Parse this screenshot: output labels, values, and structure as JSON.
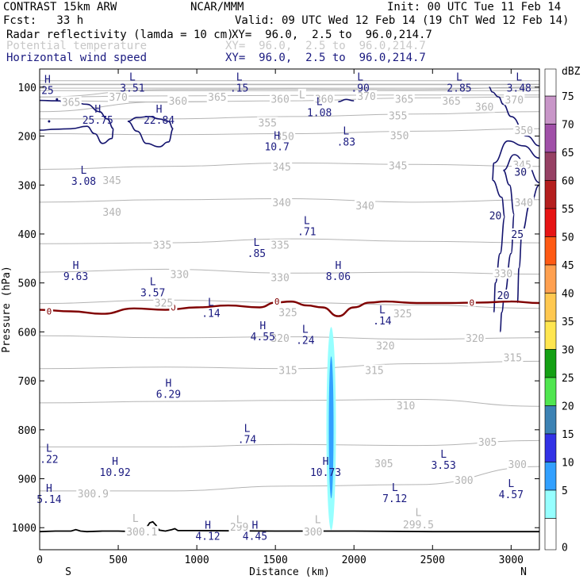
{
  "header": {
    "model": "CONTRAST 15km ARW",
    "center": "NCAR/MMM",
    "init": "Init: 00 UTC Tue 11 Feb 14",
    "fcst": "Fcst:   33 h",
    "valid": "Valid: 09 UTC Wed 12 Feb 14 (19 ChT Wed 12 Feb 14)",
    "fields": [
      {
        "name": "Radar reflectivity (lamda = 10 cm)",
        "xy": "XY=  96.0,  2.5 to  96.0,214.7",
        "color": "#000000"
      },
      {
        "name": "Potential temperature",
        "xy": "XY=  96.0,  2.5 to  96.0,214.7",
        "color": "#c8c8c8"
      },
      {
        "name": "Horizontal wind speed",
        "xy": "XY=  96.0,  2.5 to  96.0,214.7",
        "color": "#1a1a80"
      }
    ]
  },
  "chart_data": {
    "type": "cross-section",
    "xlabel": "Distance (km)",
    "ylabel": "Pressure (hPa)",
    "xlim": [
      0,
      3180
    ],
    "ylim": [
      1045,
      63
    ],
    "x_ticks": [
      0,
      500,
      1000,
      1500,
      2000,
      2500,
      3000
    ],
    "y_ticks": [
      100,
      200,
      300,
      400,
      500,
      600,
      700,
      800,
      900,
      1000
    ],
    "end_labels": {
      "left": "S",
      "right": "N"
    },
    "colorbar": {
      "unit": "dBZ",
      "levels": [
        "75",
        "70",
        "65",
        "60",
        "55",
        "50",
        "45",
        "40",
        "35",
        "30",
        "25",
        "20",
        "15",
        "10",
        "5",
        "0"
      ],
      "colors": [
        "#c896c8",
        "#a050a8",
        "#964064",
        "#b41e1e",
        "#e61414",
        "#ff5a14",
        "#ffa050",
        "#ffc850",
        "#ffe650",
        "#14a014",
        "#50e650",
        "#3c82b4",
        "#3232e6",
        "#32a0ff",
        "#96ffff",
        "#ffffff"
      ]
    },
    "theta_isentropes": [
      {
        "label": "370",
        "p": [
          120,
          105,
          104,
          105,
          100
        ]
      },
      {
        "label": "365",
        "p": [
          120,
          118,
          117,
          116,
          116
        ]
      },
      {
        "label": "360",
        "p": [
          150,
          130,
          128,
          122,
          120
        ]
      },
      {
        "label": "355",
        "p": [
          165,
          165,
          160,
          155,
          150
        ]
      },
      {
        "label": "350",
        "p": [
          195,
          197,
          195,
          190,
          185
        ]
      },
      {
        "label": "345",
        "p": [
          268,
          262,
          255,
          258,
          262
        ]
      },
      {
        "label": "340",
        "p": [
          335,
          330,
          328,
          335,
          330
        ]
      },
      {
        "label": "335",
        "p": [
          420,
          418,
          410,
          415,
          418
        ]
      },
      {
        "label": "330",
        "p": [
          478,
          472,
          480,
          478,
          482
        ]
      },
      {
        "label": "325",
        "p": [
          542,
          535,
          540,
          545,
          552
        ]
      },
      {
        "label": "320",
        "p": [
          608,
          612,
          610,
          615,
          612
        ]
      },
      {
        "label": "315",
        "p": [
          675,
          672,
          675,
          665,
          660
        ]
      },
      {
        "label": "310",
        "p": [
          745,
          742,
          740,
          738,
          752
        ]
      },
      {
        "label": "305",
        "p": [
          835,
          835,
          830,
          832,
          822
        ]
      },
      {
        "label": "300",
        "p": [
          925,
          925,
          915,
          912,
          875
        ]
      }
    ],
    "theta_labels": [
      {
        "x": 200,
        "p": 130,
        "text": "365"
      },
      {
        "x": 500,
        "p": 120,
        "text": "370"
      },
      {
        "x": 880,
        "p": 128,
        "text": "360"
      },
      {
        "x": 1130,
        "p": 120,
        "text": "365"
      },
      {
        "x": 1530,
        "p": 124,
        "text": "360"
      },
      {
        "x": 1810,
        "p": 124,
        "text": "360"
      },
      {
        "x": 2080,
        "p": 118,
        "text": "370"
      },
      {
        "x": 2320,
        "p": 124,
        "text": "365"
      },
      {
        "x": 2620,
        "p": 128,
        "text": "365"
      },
      {
        "x": 2830,
        "p": 140,
        "text": "360"
      },
      {
        "x": 3020,
        "p": 125,
        "text": "370"
      },
      {
        "x": 1450,
        "p": 172,
        "text": "355"
      },
      {
        "x": 2280,
        "p": 158,
        "text": "355"
      },
      {
        "x": 1560,
        "p": 200,
        "text": "350"
      },
      {
        "x": 2290,
        "p": 198,
        "text": "350"
      },
      {
        "x": 3080,
        "p": 188,
        "text": "350"
      },
      {
        "x": 1540,
        "p": 262,
        "text": "345"
      },
      {
        "x": 2280,
        "p": 260,
        "text": "345"
      },
      {
        "x": 3070,
        "p": 258,
        "text": "345"
      },
      {
        "x": 460,
        "p": 290,
        "text": "345"
      },
      {
        "x": 1540,
        "p": 335,
        "text": "340"
      },
      {
        "x": 2070,
        "p": 342,
        "text": "340"
      },
      {
        "x": 460,
        "p": 355,
        "text": "340"
      },
      {
        "x": 3080,
        "p": 335,
        "text": "340"
      },
      {
        "x": 780,
        "p": 422,
        "text": "335"
      },
      {
        "x": 1530,
        "p": 422,
        "text": "335"
      },
      {
        "x": 890,
        "p": 482,
        "text": "330"
      },
      {
        "x": 1530,
        "p": 488,
        "text": "330"
      },
      {
        "x": 2950,
        "p": 480,
        "text": "330"
      },
      {
        "x": 790,
        "p": 540,
        "text": "325"
      },
      {
        "x": 1580,
        "p": 560,
        "text": "325"
      },
      {
        "x": 2310,
        "p": 562,
        "text": "325"
      },
      {
        "x": 1530,
        "p": 612,
        "text": "320"
      },
      {
        "x": 2200,
        "p": 628,
        "text": "320"
      },
      {
        "x": 2770,
        "p": 612,
        "text": "320"
      },
      {
        "x": 1580,
        "p": 678,
        "text": "315"
      },
      {
        "x": 2130,
        "p": 678,
        "text": "315"
      },
      {
        "x": 3010,
        "p": 652,
        "text": "315"
      },
      {
        "x": 2330,
        "p": 750,
        "text": "310"
      },
      {
        "x": 2850,
        "p": 825,
        "text": "305"
      },
      {
        "x": 2190,
        "p": 868,
        "text": "305"
      },
      {
        "x": 3040,
        "p": 870,
        "text": "300"
      },
      {
        "x": 2700,
        "p": 902,
        "text": "300"
      }
    ],
    "surface_theta_labels": [
      {
        "x": 340,
        "p": 930,
        "text": "300.9"
      },
      {
        "x": 650,
        "p": 1008,
        "text": "300.1"
      },
      {
        "x": 1270,
        "p": 998,
        "text": "299"
      },
      {
        "x": 1740,
        "p": 1008,
        "text": "300"
      },
      {
        "x": 2410,
        "p": 993,
        "text": "299.5"
      }
    ],
    "surface_theta_LH": [
      {
        "x": 610,
        "p": 980,
        "text": "L"
      },
      {
        "x": 1270,
        "p": 983,
        "text": "L"
      },
      {
        "x": 1770,
        "p": 983,
        "text": "L"
      },
      {
        "x": 2410,
        "p": 968,
        "text": "L"
      }
    ],
    "theta_extrema": [
      {
        "x": 1670,
        "p": 115,
        "text": "L"
      }
    ],
    "zero_isotherm": {
      "label": "0",
      "x": [
        0,
        200,
        400,
        600,
        800,
        1000,
        1200,
        1400,
        1500,
        1600,
        1700,
        1800,
        1900,
        2000,
        2100,
        2200,
        2400,
        2600,
        2800,
        3000,
        3180
      ],
      "p": [
        555,
        558,
        563,
        552,
        555,
        550,
        546,
        550,
        540,
        538,
        546,
        550,
        568,
        550,
        540,
        538,
        541,
        541,
        540,
        538,
        541
      ]
    },
    "wind_extrema": [
      {
        "x": 50,
        "p": 95,
        "type": "H",
        "value": "25"
      },
      {
        "x": 590,
        "p": 90,
        "type": "L",
        "value": "3.51"
      },
      {
        "x": 1270,
        "p": 90,
        "type": "L",
        "value": ".15"
      },
      {
        "x": 2040,
        "p": 90,
        "type": "L",
        "value": ".90"
      },
      {
        "x": 2670,
        "p": 90,
        "type": "L",
        "value": "2.85"
      },
      {
        "x": 3050,
        "p": 90,
        "type": "L",
        "value": "3.48"
      },
      {
        "x": 370,
        "p": 155,
        "type": "H",
        "value": "25.75"
      },
      {
        "x": 760,
        "p": 155,
        "type": "H",
        "value": "22.84"
      },
      {
        "x": 1780,
        "p": 140,
        "type": "L",
        "value": "1.08"
      },
      {
        "x": 1510,
        "p": 210,
        "type": "H",
        "value": "10.7"
      },
      {
        "x": 1950,
        "p": 200,
        "type": "L",
        "value": ".83"
      },
      {
        "x": 280,
        "p": 280,
        "type": "L",
        "value": "3.08"
      },
      {
        "x": 1700,
        "p": 383,
        "type": "L",
        "value": ".71"
      },
      {
        "x": 1380,
        "p": 428,
        "type": "L",
        "value": ".85"
      },
      {
        "x": 230,
        "p": 475,
        "type": "H",
        "value": "9.63"
      },
      {
        "x": 1900,
        "p": 475,
        "type": "H",
        "value": "8.06"
      },
      {
        "x": 720,
        "p": 508,
        "type": "L",
        "value": "3.57"
      },
      {
        "x": 1090,
        "p": 550,
        "type": "L",
        "value": ".14"
      },
      {
        "x": 2180,
        "p": 565,
        "type": "L",
        "value": ".14"
      },
      {
        "x": 1420,
        "p": 598,
        "type": "H",
        "value": "4.55"
      },
      {
        "x": 1690,
        "p": 605,
        "type": "L",
        "value": ".24"
      },
      {
        "x": 820,
        "p": 715,
        "type": "H",
        "value": "6.29"
      },
      {
        "x": 1320,
        "p": 808,
        "type": "L",
        "value": ".74"
      },
      {
        "x": 60,
        "p": 848,
        "type": "L",
        "value": ".22"
      },
      {
        "x": 480,
        "p": 875,
        "type": "H",
        "value": "10.92"
      },
      {
        "x": 1820,
        "p": 875,
        "type": "H",
        "value": "10.73"
      },
      {
        "x": 2570,
        "p": 860,
        "type": "L",
        "value": "3.53"
      },
      {
        "x": 60,
        "p": 930,
        "type": "H",
        "value": "5.14"
      },
      {
        "x": 2260,
        "p": 928,
        "type": "L",
        "value": "7.12"
      },
      {
        "x": 3000,
        "p": 920,
        "type": "L",
        "value": "4.57"
      },
      {
        "x": 1070,
        "p": 1005,
        "type": "H",
        "value": "4.12"
      },
      {
        "x": 1370,
        "p": 1005,
        "type": "H",
        "value": "4.45"
      }
    ],
    "wind_contour_labels": [
      {
        "x": 3060,
        "p": 273,
        "text": "30"
      },
      {
        "x": 2900,
        "p": 362,
        "text": "20"
      },
      {
        "x": 3040,
        "p": 400,
        "text": "25"
      },
      {
        "x": 2950,
        "p": 525,
        "text": "20"
      }
    ],
    "reflectivity_band": {
      "x_center": 1855,
      "p_top": 590,
      "p_bottom": 1005,
      "levels": [
        "5",
        "10"
      ]
    },
    "terrain": {
      "x": [
        0,
        100,
        200,
        230,
        260,
        300,
        400,
        500,
        600,
        650,
        680,
        700,
        720,
        740,
        760,
        800,
        840,
        860,
        880,
        1000,
        1500,
        2000,
        2500,
        3000,
        3180
      ],
      "p": [
        1008,
        1007,
        1007,
        1004,
        1007,
        1008,
        1007,
        1007,
        1008,
        1008,
        1000,
        990,
        988,
        995,
        1005,
        1007,
        1004,
        1002,
        1006,
        1006,
        1007,
        1007,
        1008,
        1008,
        1008
      ]
    }
  }
}
